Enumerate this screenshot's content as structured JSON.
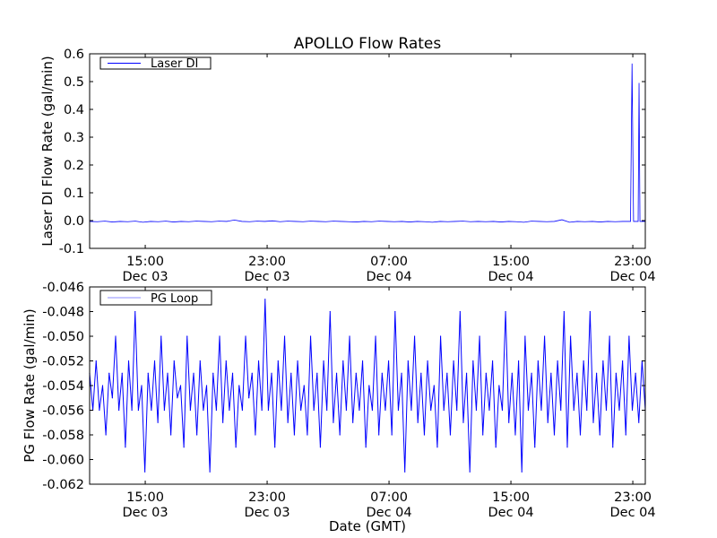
{
  "chart_data": [
    {
      "type": "line",
      "title": "APOLLO Flow Rates",
      "ylabel": "Laser DI Flow Rate (gal/min)",
      "xlabel": "",
      "legend": "Laser DI",
      "legend_placement": "top-left",
      "color": "#0000ff",
      "xlim_hours": [
        0,
        36.47
      ],
      "ylim": [
        -0.1,
        0.6
      ],
      "yticks": [
        -0.1,
        0.0,
        0.1,
        0.2,
        0.3,
        0.4,
        0.5,
        0.6
      ],
      "ytick_labels": [
        "-0.1",
        "0.0",
        "0.1",
        "0.2",
        "0.3",
        "0.4",
        "0.5",
        "0.6"
      ],
      "xticks_hours": [
        3.65,
        11.65,
        19.65,
        27.65,
        35.65
      ],
      "xtick_labels": [
        [
          "15:00",
          "Dec 03"
        ],
        [
          "23:00",
          "Dec 03"
        ],
        [
          "07:00",
          "Dec 04"
        ],
        [
          "15:00",
          "Dec 04"
        ],
        [
          "23:00",
          "Dec 04"
        ]
      ],
      "points": [
        [
          0,
          -0.003
        ],
        [
          0.5,
          -0.004
        ],
        [
          1,
          -0.002
        ],
        [
          1.5,
          -0.005
        ],
        [
          2,
          -0.003
        ],
        [
          2.5,
          -0.004
        ],
        [
          3,
          -0.002
        ],
        [
          3.5,
          -0.006
        ],
        [
          4,
          -0.003
        ],
        [
          4.5,
          -0.004
        ],
        [
          5,
          -0.002
        ],
        [
          5.5,
          -0.005
        ],
        [
          6,
          -0.003
        ],
        [
          6.5,
          -0.004
        ],
        [
          7,
          -0.002
        ],
        [
          7.5,
          -0.003
        ],
        [
          8,
          -0.004
        ],
        [
          8.5,
          -0.002
        ],
        [
          9,
          -0.003
        ],
        [
          9.5,
          0.002
        ],
        [
          10,
          -0.003
        ],
        [
          10.5,
          -0.004
        ],
        [
          11,
          -0.002
        ],
        [
          11.5,
          -0.003
        ],
        [
          12,
          -0.001
        ],
        [
          12.5,
          -0.004
        ],
        [
          13,
          -0.002
        ],
        [
          13.5,
          -0.003
        ],
        [
          14,
          -0.004
        ],
        [
          14.5,
          -0.002
        ],
        [
          15,
          -0.003
        ],
        [
          15.5,
          -0.004
        ],
        [
          16,
          -0.002
        ],
        [
          16.5,
          -0.003
        ],
        [
          17,
          -0.004
        ],
        [
          17.5,
          -0.005
        ],
        [
          18,
          -0.003
        ],
        [
          18.5,
          -0.004
        ],
        [
          19,
          -0.002
        ],
        [
          19.5,
          -0.003
        ],
        [
          20,
          -0.004
        ],
        [
          20.5,
          -0.003
        ],
        [
          21,
          -0.005
        ],
        [
          21.5,
          -0.003
        ],
        [
          22,
          -0.004
        ],
        [
          22.5,
          -0.006
        ],
        [
          23,
          -0.003
        ],
        [
          23.5,
          -0.004
        ],
        [
          24,
          -0.003
        ],
        [
          24.5,
          -0.002
        ],
        [
          25,
          -0.004
        ],
        [
          25.5,
          -0.003
        ],
        [
          26,
          -0.004
        ],
        [
          26.5,
          -0.003
        ],
        [
          27,
          -0.005
        ],
        [
          27.5,
          -0.003
        ],
        [
          28,
          -0.004
        ],
        [
          28.5,
          -0.006
        ],
        [
          29,
          -0.002
        ],
        [
          29.5,
          -0.003
        ],
        [
          30,
          -0.004
        ],
        [
          30.5,
          -0.003
        ],
        [
          31,
          0.003
        ],
        [
          31.5,
          -0.006
        ],
        [
          32,
          -0.003
        ],
        [
          32.5,
          -0.004
        ],
        [
          33,
          -0.003
        ],
        [
          33.5,
          -0.005
        ],
        [
          34,
          -0.003
        ],
        [
          34.5,
          -0.004
        ],
        [
          35,
          -0.003
        ],
        [
          35.5,
          -0.003
        ],
        [
          35.6,
          0.565
        ],
        [
          35.7,
          -0.003
        ],
        [
          36.0,
          -0.003
        ],
        [
          36.06,
          0.495
        ],
        [
          36.12,
          -0.003
        ],
        [
          36.47,
          -0.003
        ]
      ]
    },
    {
      "type": "line",
      "ylabel": "PG Flow Rate (gal/min)",
      "xlabel": "Date (GMT)",
      "legend": "PG Loop",
      "legend_placement": "top-left",
      "color": "#0000ff",
      "xlim_hours": [
        0,
        36.47
      ],
      "ylim": [
        -0.062,
        -0.046
      ],
      "yticks": [
        -0.062,
        -0.06,
        -0.058,
        -0.056,
        -0.054,
        -0.052,
        -0.05,
        -0.048,
        -0.046
      ],
      "ytick_labels": [
        "-0.062",
        "-0.060",
        "-0.058",
        "-0.056",
        "-0.054",
        "-0.052",
        "-0.050",
        "-0.048",
        "-0.046"
      ],
      "xticks_hours": [
        3.65,
        11.65,
        19.65,
        27.65,
        35.65
      ],
      "xtick_labels": [
        [
          "15:00",
          "Dec 03"
        ],
        [
          "23:00",
          "Dec 03"
        ],
        [
          "07:00",
          "Dec 04"
        ],
        [
          "15:00",
          "Dec 04"
        ],
        [
          "23:00",
          "Dec 04"
        ]
      ],
      "values": [
        -0.053,
        -0.056,
        -0.052,
        -0.056,
        -0.054,
        -0.058,
        -0.053,
        -0.055,
        -0.05,
        -0.056,
        -0.053,
        -0.059,
        -0.052,
        -0.056,
        -0.048,
        -0.056,
        -0.054,
        -0.061,
        -0.053,
        -0.056,
        -0.052,
        -0.057,
        -0.05,
        -0.056,
        -0.053,
        -0.058,
        -0.052,
        -0.055,
        -0.054,
        -0.059,
        -0.05,
        -0.056,
        -0.053,
        -0.058,
        -0.052,
        -0.056,
        -0.054,
        -0.061,
        -0.053,
        -0.056,
        -0.05,
        -0.057,
        -0.052,
        -0.056,
        -0.053,
        -0.059,
        -0.054,
        -0.056,
        -0.05,
        -0.055,
        -0.053,
        -0.058,
        -0.052,
        -0.056,
        -0.047,
        -0.056,
        -0.053,
        -0.059,
        -0.052,
        -0.056,
        -0.05,
        -0.057,
        -0.053,
        -0.058,
        -0.052,
        -0.056,
        -0.054,
        -0.058,
        -0.05,
        -0.056,
        -0.053,
        -0.059,
        -0.052,
        -0.056,
        -0.048,
        -0.057,
        -0.053,
        -0.058,
        -0.052,
        -0.056,
        -0.05,
        -0.057,
        -0.053,
        -0.056,
        -0.052,
        -0.059,
        -0.054,
        -0.056,
        -0.05,
        -0.058,
        -0.053,
        -0.056,
        -0.052,
        -0.058,
        -0.048,
        -0.056,
        -0.053,
        -0.061,
        -0.052,
        -0.056,
        -0.05,
        -0.057,
        -0.053,
        -0.058,
        -0.052,
        -0.056,
        -0.054,
        -0.059,
        -0.05,
        -0.056,
        -0.053,
        -0.058,
        -0.052,
        -0.056,
        -0.048,
        -0.057,
        -0.053,
        -0.061,
        -0.052,
        -0.056,
        -0.05,
        -0.058,
        -0.053,
        -0.056,
        -0.052,
        -0.059,
        -0.054,
        -0.056,
        -0.048,
        -0.057,
        -0.053,
        -0.058,
        -0.052,
        -0.061,
        -0.05,
        -0.056,
        -0.053,
        -0.059,
        -0.052,
        -0.056,
        -0.05,
        -0.057,
        -0.053,
        -0.058,
        -0.052,
        -0.056,
        -0.048,
        -0.059,
        -0.05,
        -0.056,
        -0.053,
        -0.058,
        -0.052,
        -0.056,
        -0.048,
        -0.057,
        -0.053,
        -0.058,
        -0.052,
        -0.056,
        -0.05,
        -0.059,
        -0.053,
        -0.056,
        -0.052,
        -0.058,
        -0.05,
        -0.056,
        -0.053,
        -0.057,
        -0.052,
        -0.056
      ]
    }
  ]
}
